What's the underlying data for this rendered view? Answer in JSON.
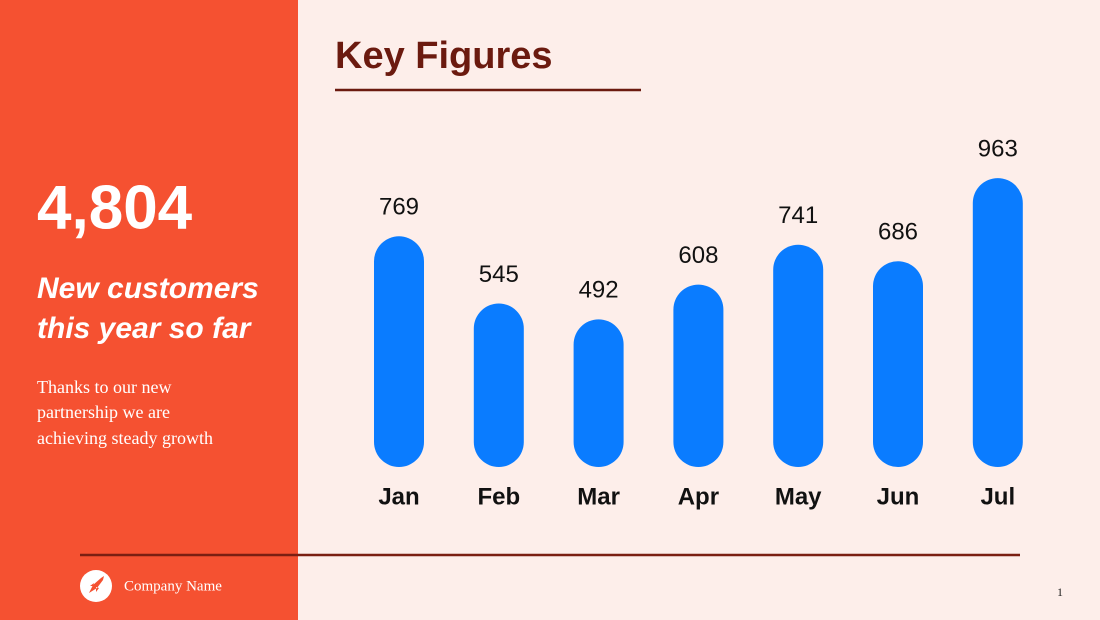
{
  "sidebar": {
    "stat": "4,804",
    "headline": [
      "New customers",
      "this year so far"
    ],
    "body": [
      "Thanks to our new",
      "partnership we are",
      "achieving steady growth"
    ]
  },
  "chart_data": {
    "type": "bar",
    "title": "Key Figures",
    "categories": [
      "Jan",
      "Feb",
      "Mar",
      "Apr",
      "May",
      "Jun",
      "Jul"
    ],
    "values": [
      769,
      545,
      492,
      608,
      741,
      686,
      963
    ],
    "color": "#0a7cff"
  },
  "footer": {
    "company": "Company Name",
    "page": "1"
  }
}
